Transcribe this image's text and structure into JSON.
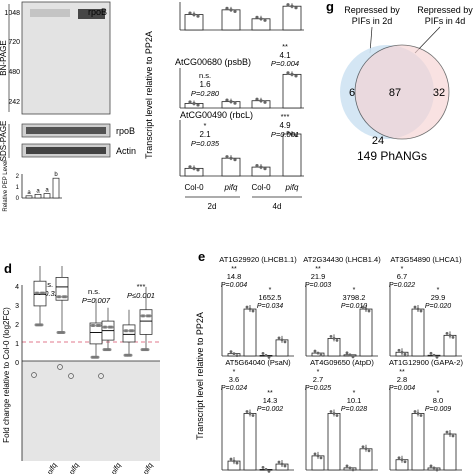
{
  "panel_c": {
    "bn_page": {
      "label": "BN-PAGE",
      "mw_markers": [
        "1048",
        "720",
        "480",
        "242"
      ],
      "band": "rpoB"
    },
    "sds_page": {
      "label": "SDS-PAGE",
      "bands": [
        "rpoB",
        "Actin"
      ]
    },
    "pep_level": {
      "ylabel": "Relative PEP Level",
      "ticks": [
        "2",
        "1",
        "0"
      ],
      "letters": [
        "a",
        "a",
        "a",
        "b"
      ],
      "values": [
        0.3,
        0.5,
        0.6,
        2.7
      ]
    }
  },
  "panel_transcript": {
    "ylabel": "Transcript level relative to PP2A",
    "top_values": [
      0.55,
      0.72,
      0.4,
      0.85
    ],
    "subplots": [
      {
        "gene": "AtCG00680 (psbB)",
        "stats": [
          {
            "stars": "n.s.",
            "fold": "1.6",
            "p": "P=0.280"
          },
          {
            "stars": "**",
            "fold": "4.1",
            "p": "P=0.004"
          }
        ],
        "values": [
          0.25,
          0.35,
          0.4,
          1.85
        ]
      },
      {
        "gene": "AtCG00490 (rbcL)",
        "stats": [
          {
            "stars": "*",
            "fold": "2.1",
            "p": "P=0.035"
          },
          {
            "stars": "***",
            "fold": "4.9",
            "p": "P=0.001"
          }
        ],
        "values": [
          0.3,
          0.7,
          0.35,
          1.65
        ]
      }
    ],
    "x_labels": [
      "Col-0",
      "pifq",
      "Col-0",
      "pifq"
    ],
    "day_labels": [
      "2d",
      "4d"
    ]
  },
  "panel_g": {
    "letter": "g",
    "left_label": [
      "Repressed by",
      "PIFs in 2d"
    ],
    "right_label": [
      "Repressed by",
      "PIFs in 4d"
    ],
    "left_only": "6",
    "overlap": "87",
    "right_only": "32",
    "outside": "24",
    "total": "149 PhANGs",
    "colors": {
      "left": "#cfe3f3",
      "right": "#f6d3d3"
    }
  },
  "panel_d": {
    "letter": "d",
    "ylabel": "Fold change relative to Col-0 (log2FC)",
    "ticks": [
      "4",
      "3",
      "2",
      "1",
      "0"
    ],
    "stats": [
      {
        "sig": "n.s.",
        "p": "P=0.326"
      },
      {
        "sig": "n.s.",
        "p": "P=0.007"
      },
      {
        "sig": "***",
        "p": "P≤0.001"
      }
    ],
    "x_labels": [
      "pifq",
      "pifq",
      "pifq",
      "pifq"
    ],
    "boxes": [
      {
        "q1": 2.9,
        "median": 3.5,
        "q3": 4.2,
        "min": 1.9,
        "max": 5.0
      },
      {
        "q1": 3.2,
        "median": 3.9,
        "q3": 4.4,
        "min": 1.5,
        "max": 5.0
      },
      {
        "q1": 0.9,
        "median": 1.5,
        "q3": 2.0,
        "min": 0.2,
        "max": 3.3
      },
      {
        "q1": 1.1,
        "median": 1.6,
        "q3": 2.1,
        "min": 0.6,
        "max": 2.8
      },
      {
        "q1": 1.0,
        "median": 1.4,
        "q3": 1.9,
        "min": 0.3,
        "max": 2.7
      },
      {
        "q1": 1.4,
        "median": 2.1,
        "q3": 2.7,
        "min": 0.6,
        "max": 3.9
      }
    ]
  },
  "panel_e": {
    "letter": "e",
    "ylabel": "Transcript level relative to PP2A",
    "genes": [
      {
        "title": "AT1G29920 (LHCB1.1)",
        "stats": [
          {
            "stars": "**",
            "fold": "14.8",
            "p": "P=0.004"
          },
          {
            "stars": "*",
            "fold": "1652.5",
            "p": "P=0.034"
          }
        ],
        "values": [
          0.08,
          1.6,
          0.02,
          0.55
        ]
      },
      {
        "title": "AT2G34430 (LHCB1.4)",
        "stats": [
          {
            "stars": "**",
            "fold": "21.9",
            "p": "P=0.003"
          },
          {
            "stars": "*",
            "fold": "3798.2",
            "p": "P=0.010"
          }
        ],
        "values": [
          0.05,
          0.3,
          0.02,
          0.8
        ]
      },
      {
        "title": "AT3G54890 (LHCA1)",
        "stats": [
          {
            "stars": "*",
            "fold": "6.7",
            "p": "P=0.022"
          },
          {
            "stars": "*",
            "fold": "29.9",
            "p": "P=0.020"
          }
        ],
        "values": [
          0.1,
          1.25,
          0.02,
          0.55
        ]
      },
      {
        "title": "AT5G64040 (PsaN)",
        "stats": [
          {
            "stars": "*",
            "fold": "3.6",
            "p": "P=0.024"
          },
          {
            "stars": "**",
            "fold": "14.3",
            "p": "P=0.002"
          }
        ],
        "values": [
          0.15,
          0.95,
          0.01,
          0.1
        ]
      },
      {
        "title": "AT4G09650 (AtpD)",
        "stats": [
          {
            "stars": "*",
            "fold": "2.7",
            "p": "P=0.025"
          },
          {
            "stars": "*",
            "fold": "10.1",
            "p": "P=0.028"
          }
        ],
        "values": [
          0.2,
          0.8,
          0.03,
          0.3
        ]
      },
      {
        "title": "AT1G12900 (GAPA-2)",
        "stats": [
          {
            "stars": "**",
            "fold": "2.8",
            "p": "P=0.004"
          },
          {
            "stars": "*",
            "fold": "8.0",
            "p": "P=0.009"
          }
        ],
        "values": [
          0.1,
          0.55,
          0.02,
          0.35
        ]
      }
    ]
  }
}
